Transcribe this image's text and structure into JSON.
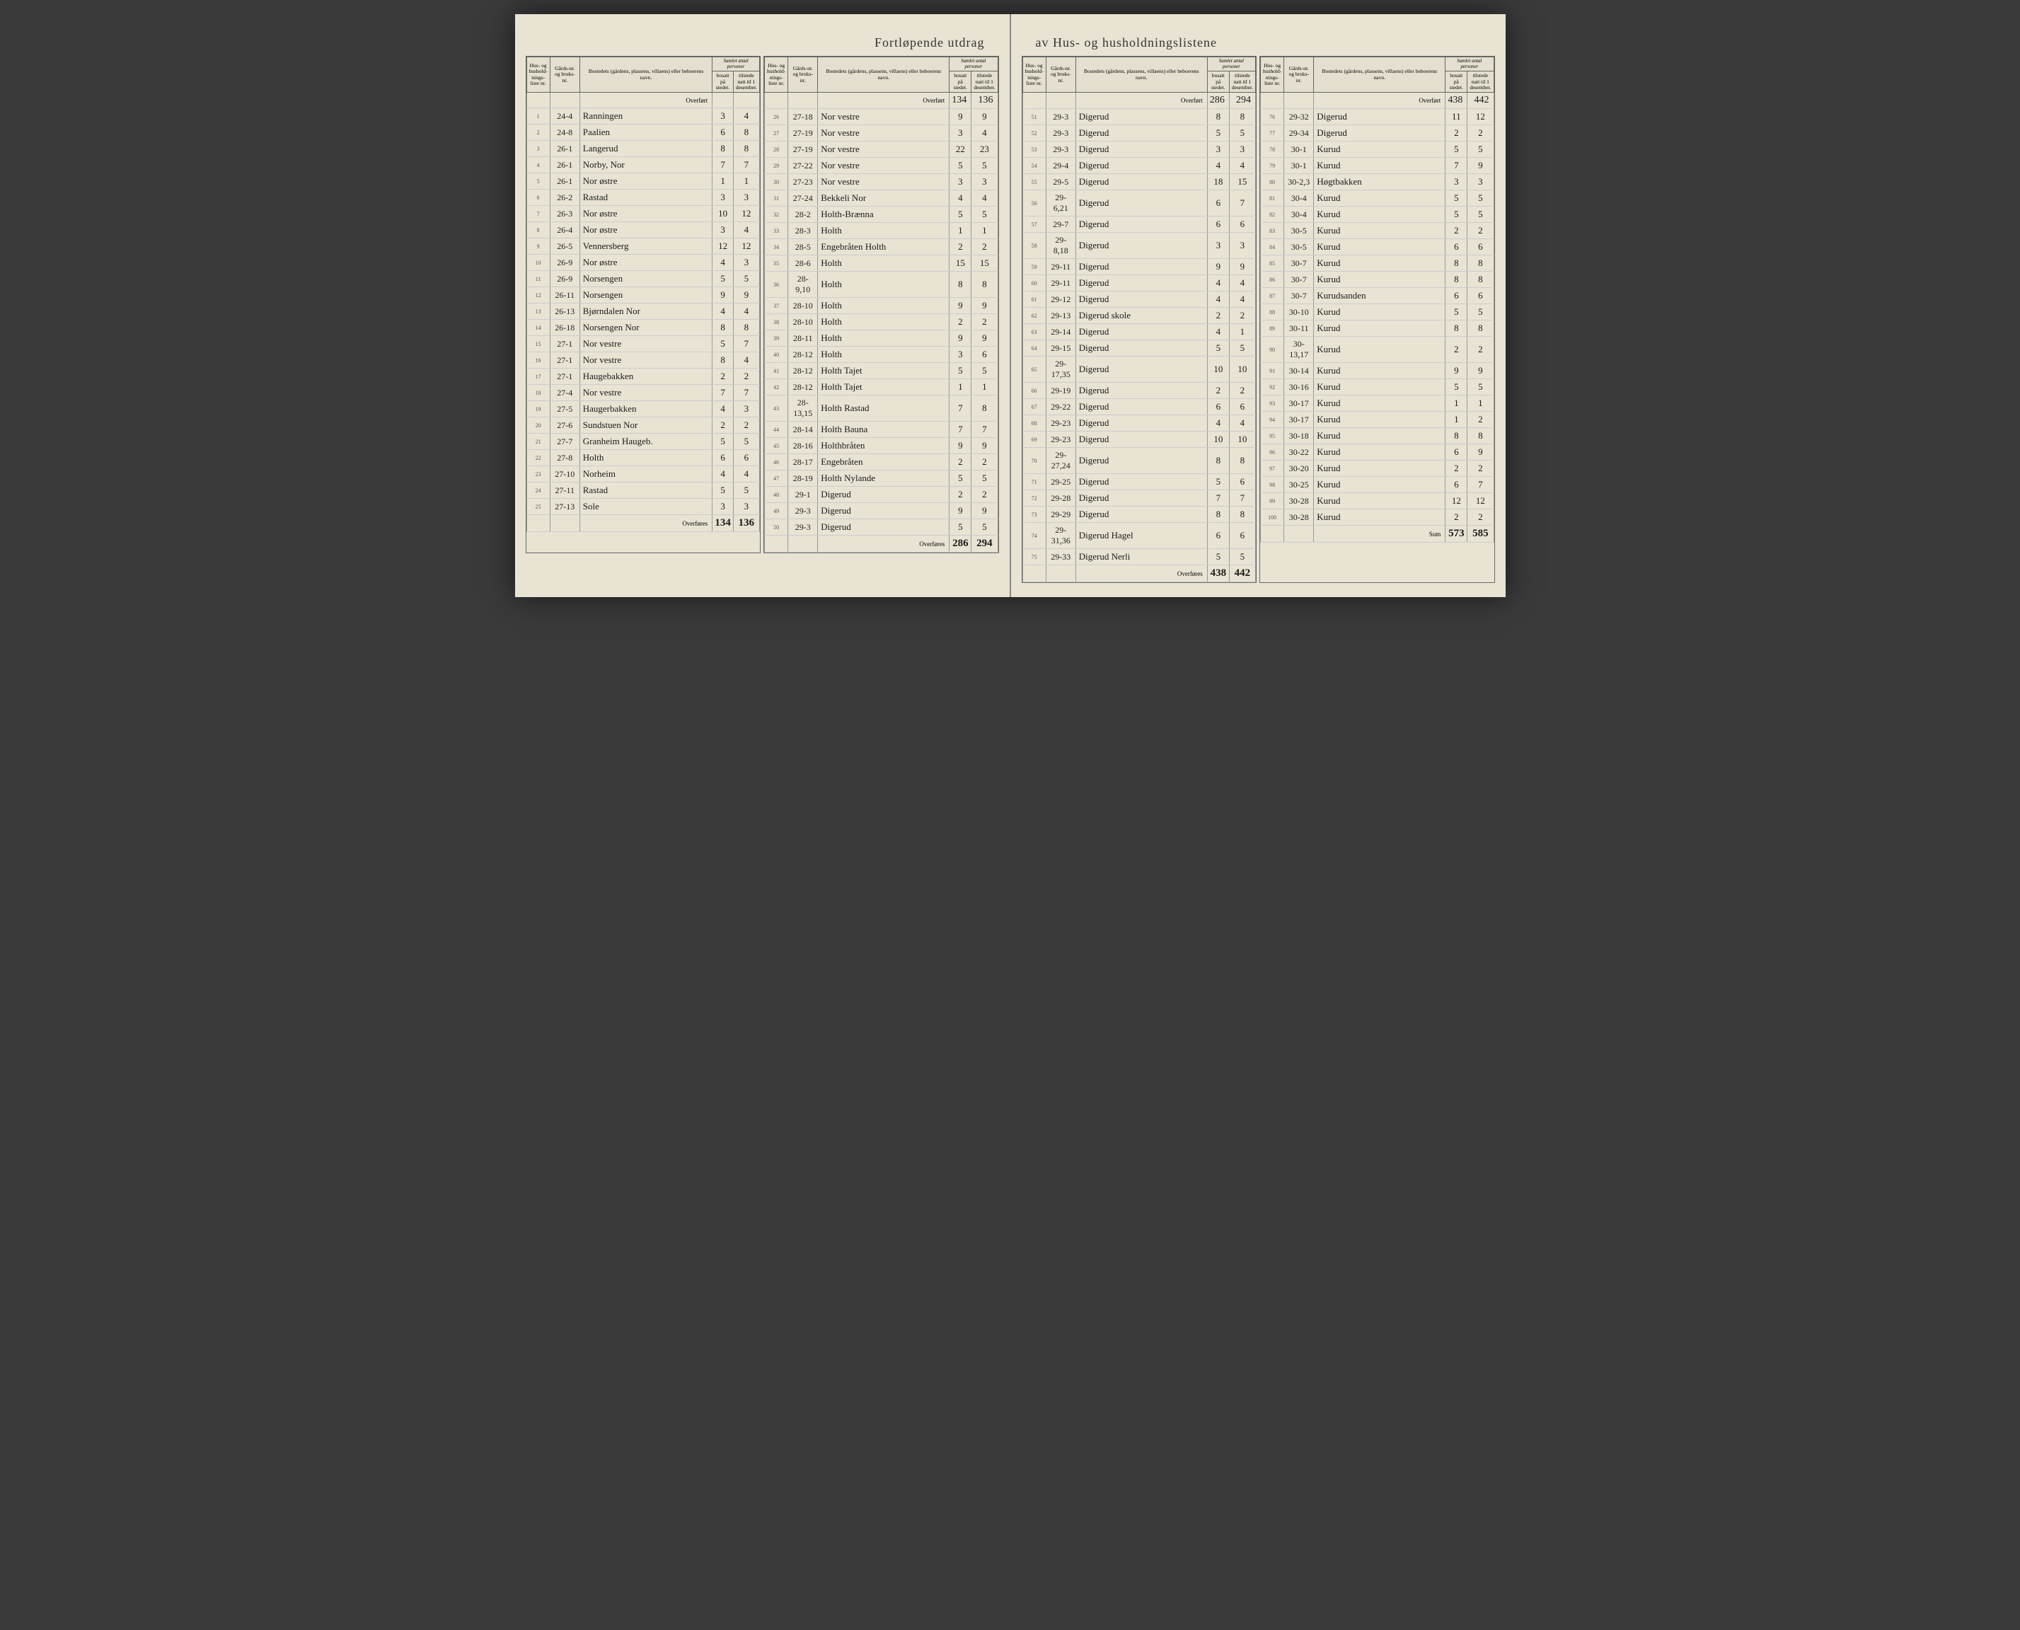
{
  "title_left": "Fortløpende utdrag",
  "title_right": "av Hus- og husholdningslistene",
  "headers": {
    "hus": "Hus- og hushold-nings-liste nr.",
    "gaard": "Gårds-nr. og bruks-nr.",
    "bosted": "Bostedets (gårdens, plassens, villaens) eller beboerens navn.",
    "samlet": "Samlet antal personer",
    "bosatt": "bosatt på stedet.",
    "tilstede": "tilstede natt til 1 desember."
  },
  "overfort_label": "Overført",
  "overfores_label": "Overføres",
  "sum_label": "Sum",
  "cols": [
    {
      "carry_in": [
        "",
        ""
      ],
      "rows": [
        {
          "n": "1",
          "g": "24-4",
          "name": "Ranningen",
          "b": "3",
          "t": "4"
        },
        {
          "n": "2",
          "g": "24-8",
          "name": "Paalien",
          "b": "6",
          "t": "8"
        },
        {
          "n": "3",
          "g": "26-1",
          "name": "Langerud",
          "b": "8",
          "t": "8"
        },
        {
          "n": "4",
          "g": "26-1",
          "name": "Norby, Nor",
          "b": "7",
          "t": "7"
        },
        {
          "n": "5",
          "g": "26-1",
          "name": "Nor østre",
          "b": "1",
          "t": "1"
        },
        {
          "n": "6",
          "g": "26-2",
          "name": "Rastad",
          "b": "3",
          "t": "3"
        },
        {
          "n": "7",
          "g": "26-3",
          "name": "Nor østre",
          "b": "10",
          "t": "12"
        },
        {
          "n": "8",
          "g": "26-4",
          "name": "Nor østre",
          "b": "3",
          "t": "4"
        },
        {
          "n": "9",
          "g": "26-5",
          "name": "Vennersberg",
          "b": "12",
          "t": "12"
        },
        {
          "n": "10",
          "g": "26-9",
          "name": "Nor østre",
          "b": "4",
          "t": "3"
        },
        {
          "n": "11",
          "g": "26-9",
          "name": "Norsengen",
          "b": "5",
          "t": "5"
        },
        {
          "n": "12",
          "g": "26-11",
          "name": "Norsengen",
          "b": "9",
          "t": "9"
        },
        {
          "n": "13",
          "g": "26-13",
          "name": "Bjørndalen Nor",
          "b": "4",
          "t": "4"
        },
        {
          "n": "14",
          "g": "26-18",
          "name": "Norsengen Nor",
          "b": "8",
          "t": "8"
        },
        {
          "n": "15",
          "g": "27-1",
          "name": "Nor vestre",
          "b": "5",
          "t": "7"
        },
        {
          "n": "16",
          "g": "27-1",
          "name": "Nor vestre",
          "b": "8",
          "t": "4"
        },
        {
          "n": "17",
          "g": "27-1",
          "name": "Haugebakken",
          "b": "2",
          "t": "2"
        },
        {
          "n": "18",
          "g": "27-4",
          "name": "Nor vestre",
          "b": "7",
          "t": "7"
        },
        {
          "n": "19",
          "g": "27-5",
          "name": "Haugerbakken",
          "b": "4",
          "t": "3"
        },
        {
          "n": "20",
          "g": "27-6",
          "name": "Sundstuen Nor",
          "b": "2",
          "t": "2"
        },
        {
          "n": "21",
          "g": "27-7",
          "name": "Granheim Haugeb.",
          "b": "5",
          "t": "5"
        },
        {
          "n": "22",
          "g": "27-8",
          "name": "Holth",
          "b": "6",
          "t": "6"
        },
        {
          "n": "23",
          "g": "27-10",
          "name": "Norheim",
          "b": "4",
          "t": "4"
        },
        {
          "n": "24",
          "g": "27-11",
          "name": "Rastad",
          "b": "5",
          "t": "5"
        },
        {
          "n": "25",
          "g": "27-13",
          "name": "Sole",
          "b": "3",
          "t": "3"
        }
      ],
      "carry_out": [
        "134",
        "136"
      ],
      "out_label": "Overføres"
    },
    {
      "carry_in": [
        "134",
        "136"
      ],
      "rows": [
        {
          "n": "26",
          "g": "27-18",
          "name": "Nor vestre",
          "b": "9",
          "t": "9"
        },
        {
          "n": "27",
          "g": "27-19",
          "name": "Nor vestre",
          "b": "3",
          "t": "4"
        },
        {
          "n": "28",
          "g": "27-19",
          "name": "Nor vestre",
          "b": "22",
          "t": "23"
        },
        {
          "n": "29",
          "g": "27-22",
          "name": "Nor vestre",
          "b": "5",
          "t": "5"
        },
        {
          "n": "30",
          "g": "27-23",
          "name": "Nor vestre",
          "b": "3",
          "t": "3"
        },
        {
          "n": "31",
          "g": "27-24",
          "name": "Bekkeli Nor",
          "b": "4",
          "t": "4"
        },
        {
          "n": "32",
          "g": "28-2",
          "name": "Holth-Brænna",
          "b": "5",
          "t": "5"
        },
        {
          "n": "33",
          "g": "28-3",
          "name": "Holth",
          "b": "1",
          "t": "1"
        },
        {
          "n": "34",
          "g": "28-5",
          "name": "Engebråten Holth",
          "b": "2",
          "t": "2"
        },
        {
          "n": "35",
          "g": "28-6",
          "name": "Holth",
          "b": "15",
          "t": "15"
        },
        {
          "n": "36",
          "g": "28-9,10",
          "name": "Holth",
          "b": "8",
          "t": "8"
        },
        {
          "n": "37",
          "g": "28-10",
          "name": "Holth",
          "b": "9",
          "t": "9"
        },
        {
          "n": "38",
          "g": "28-10",
          "name": "Holth",
          "b": "2",
          "t": "2"
        },
        {
          "n": "39",
          "g": "28-11",
          "name": "Holth",
          "b": "9",
          "t": "9"
        },
        {
          "n": "40",
          "g": "28-12",
          "name": "Holth",
          "b": "3",
          "t": "6"
        },
        {
          "n": "41",
          "g": "28-12",
          "name": "Holth Tajet",
          "b": "5",
          "t": "5"
        },
        {
          "n": "42",
          "g": "28-12",
          "name": "Holth Tajet",
          "b": "1",
          "t": "1"
        },
        {
          "n": "43",
          "g": "28-13,15",
          "name": "Holth Rastad",
          "b": "7",
          "t": "8"
        },
        {
          "n": "44",
          "g": "28-14",
          "name": "Holth Bauna",
          "b": "7",
          "t": "7"
        },
        {
          "n": "45",
          "g": "28-16",
          "name": "Holthbråten",
          "b": "9",
          "t": "9"
        },
        {
          "n": "46",
          "g": "28-17",
          "name": "Engebråten",
          "b": "2",
          "t": "2"
        },
        {
          "n": "47",
          "g": "28-19",
          "name": "Holth Nylande",
          "b": "5",
          "t": "5"
        },
        {
          "n": "48",
          "g": "29-1",
          "name": "Digerud",
          "b": "2",
          "t": "2"
        },
        {
          "n": "49",
          "g": "29-3",
          "name": "Digerud",
          "b": "9",
          "t": "9"
        },
        {
          "n": "50",
          "g": "29-3",
          "name": "Digerud",
          "b": "5",
          "t": "5"
        }
      ],
      "carry_out": [
        "286",
        "294"
      ],
      "out_label": "Overføres"
    },
    {
      "carry_in": [
        "286",
        "294"
      ],
      "rows": [
        {
          "n": "51",
          "g": "29-3",
          "name": "Digerud",
          "b": "8",
          "t": "8"
        },
        {
          "n": "52",
          "g": "29-3",
          "name": "Digerud",
          "b": "5",
          "t": "5"
        },
        {
          "n": "53",
          "g": "29-3",
          "name": "Digerud",
          "b": "3",
          "t": "3"
        },
        {
          "n": "54",
          "g": "29-4",
          "name": "Digerud",
          "b": "4",
          "t": "4"
        },
        {
          "n": "55",
          "g": "29-5",
          "name": "Digerud",
          "b": "18",
          "t": "15"
        },
        {
          "n": "56",
          "g": "29-6,21",
          "name": "Digerud",
          "b": "6",
          "t": "7"
        },
        {
          "n": "57",
          "g": "29-7",
          "name": "Digerud",
          "b": "6",
          "t": "6"
        },
        {
          "n": "58",
          "g": "29-8,18",
          "name": "Digerud",
          "b": "3",
          "t": "3"
        },
        {
          "n": "59",
          "g": "29-11",
          "name": "Digerud",
          "b": "9",
          "t": "9"
        },
        {
          "n": "60",
          "g": "29-11",
          "name": "Digerud",
          "b": "4",
          "t": "4"
        },
        {
          "n": "61",
          "g": "29-12",
          "name": "Digerud",
          "b": "4",
          "t": "4"
        },
        {
          "n": "62",
          "g": "29-13",
          "name": "Digerud skole",
          "b": "2",
          "t": "2"
        },
        {
          "n": "63",
          "g": "29-14",
          "name": "Digerud",
          "b": "4",
          "t": "1"
        },
        {
          "n": "64",
          "g": "29-15",
          "name": "Digerud",
          "b": "5",
          "t": "5"
        },
        {
          "n": "65",
          "g": "29-17,35",
          "name": "Digerud",
          "b": "10",
          "t": "10"
        },
        {
          "n": "66",
          "g": "29-19",
          "name": "Digerud",
          "b": "2",
          "t": "2"
        },
        {
          "n": "67",
          "g": "29-22",
          "name": "Digerud",
          "b": "6",
          "t": "6"
        },
        {
          "n": "68",
          "g": "29-23",
          "name": "Digerud",
          "b": "4",
          "t": "4"
        },
        {
          "n": "69",
          "g": "29-23",
          "name": "Digerud",
          "b": "10",
          "t": "10"
        },
        {
          "n": "70",
          "g": "29-27,24",
          "name": "Digerud",
          "b": "8",
          "t": "8"
        },
        {
          "n": "71",
          "g": "29-25",
          "name": "Digerud",
          "b": "5",
          "t": "6"
        },
        {
          "n": "72",
          "g": "29-28",
          "name": "Digerud",
          "b": "7",
          "t": "7"
        },
        {
          "n": "73",
          "g": "29-29",
          "name": "Digerud",
          "b": "8",
          "t": "8"
        },
        {
          "n": "74",
          "g": "29-31,36",
          "name": "Digerud Hagel",
          "b": "6",
          "t": "6"
        },
        {
          "n": "75",
          "g": "29-33",
          "name": "Digerud Nerli",
          "b": "5",
          "t": "5"
        }
      ],
      "carry_out": [
        "438",
        "442"
      ],
      "out_label": "Overføres"
    },
    {
      "carry_in": [
        "438",
        "442"
      ],
      "rows": [
        {
          "n": "76",
          "g": "29-32",
          "name": "Digerud",
          "b": "11",
          "t": "12"
        },
        {
          "n": "77",
          "g": "29-34",
          "name": "Digerud",
          "b": "2",
          "t": "2"
        },
        {
          "n": "78",
          "g": "30-1",
          "name": "Kurud",
          "b": "5",
          "t": "5"
        },
        {
          "n": "79",
          "g": "30-1",
          "name": "Kurud",
          "b": "7",
          "t": "9"
        },
        {
          "n": "80",
          "g": "30-2,3",
          "name": "Høgtbakken",
          "b": "3",
          "t": "3"
        },
        {
          "n": "81",
          "g": "30-4",
          "name": "Kurud",
          "b": "5",
          "t": "5"
        },
        {
          "n": "82",
          "g": "30-4",
          "name": "Kurud",
          "b": "5",
          "t": "5"
        },
        {
          "n": "83",
          "g": "30-5",
          "name": "Kurud",
          "b": "2",
          "t": "2"
        },
        {
          "n": "84",
          "g": "30-5",
          "name": "Kurud",
          "b": "6",
          "t": "6"
        },
        {
          "n": "85",
          "g": "30-7",
          "name": "Kurud",
          "b": "8",
          "t": "8"
        },
        {
          "n": "86",
          "g": "30-7",
          "name": "Kurud",
          "b": "8",
          "t": "8"
        },
        {
          "n": "87",
          "g": "30-7",
          "name": "Kurudsanden",
          "b": "6",
          "t": "6"
        },
        {
          "n": "88",
          "g": "30-10",
          "name": "Kurud",
          "b": "5",
          "t": "5"
        },
        {
          "n": "89",
          "g": "30-11",
          "name": "Kurud",
          "b": "8",
          "t": "8"
        },
        {
          "n": "90",
          "g": "30-13,17",
          "name": "Kurud",
          "b": "2",
          "t": "2"
        },
        {
          "n": "91",
          "g": "30-14",
          "name": "Kurud",
          "b": "9",
          "t": "9"
        },
        {
          "n": "92",
          "g": "30-16",
          "name": "Kurud",
          "b": "5",
          "t": "5"
        },
        {
          "n": "93",
          "g": "30-17",
          "name": "Kurud",
          "b": "1",
          "t": "1"
        },
        {
          "n": "94",
          "g": "30-17",
          "name": "Kurud",
          "b": "1",
          "t": "2"
        },
        {
          "n": "95",
          "g": "30-18",
          "name": "Kurud",
          "b": "8",
          "t": "8"
        },
        {
          "n": "96",
          "g": "30-22",
          "name": "Kurud",
          "b": "6",
          "t": "9"
        },
        {
          "n": "97",
          "g": "30-20",
          "name": "Kurud",
          "b": "2",
          "t": "2"
        },
        {
          "n": "98",
          "g": "30-25",
          "name": "Kurud",
          "b": "6",
          "t": "7"
        },
        {
          "n": "99",
          "g": "30-28",
          "name": "Kurud",
          "b": "12",
          "t": "12"
        },
        {
          "n": "100",
          "g": "30-28",
          "name": "Kurud",
          "b": "2",
          "t": "2"
        }
      ],
      "carry_out": [
        "573",
        "585"
      ],
      "out_label": "Sum"
    }
  ]
}
